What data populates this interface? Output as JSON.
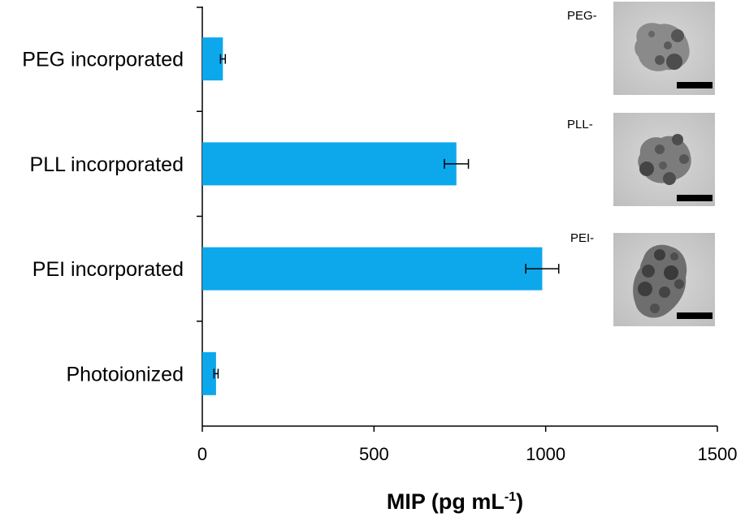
{
  "chart_data": {
    "type": "bar",
    "orientation": "horizontal",
    "categories": [
      "PEG incorporated",
      "PLL incorporated",
      "PEI incorporated",
      "Photoionized"
    ],
    "values": [
      60,
      740,
      990,
      40
    ],
    "errors": [
      7,
      35,
      48,
      6
    ],
    "bar_color": "#0DA8EC",
    "xlim": [
      0,
      1500
    ],
    "xticks": [
      0,
      500,
      1000,
      1500
    ],
    "xtick_labels": [
      "0",
      "500",
      "1000",
      "1500"
    ],
    "xlabel_main": "MIP (pg mL",
    "xlabel_sup": "-1",
    "xlabel_close": ")",
    "grid": false
  },
  "insets": [
    {
      "label": "PEG-"
    },
    {
      "label": "PLL-"
    },
    {
      "label": "PEI-"
    }
  ]
}
